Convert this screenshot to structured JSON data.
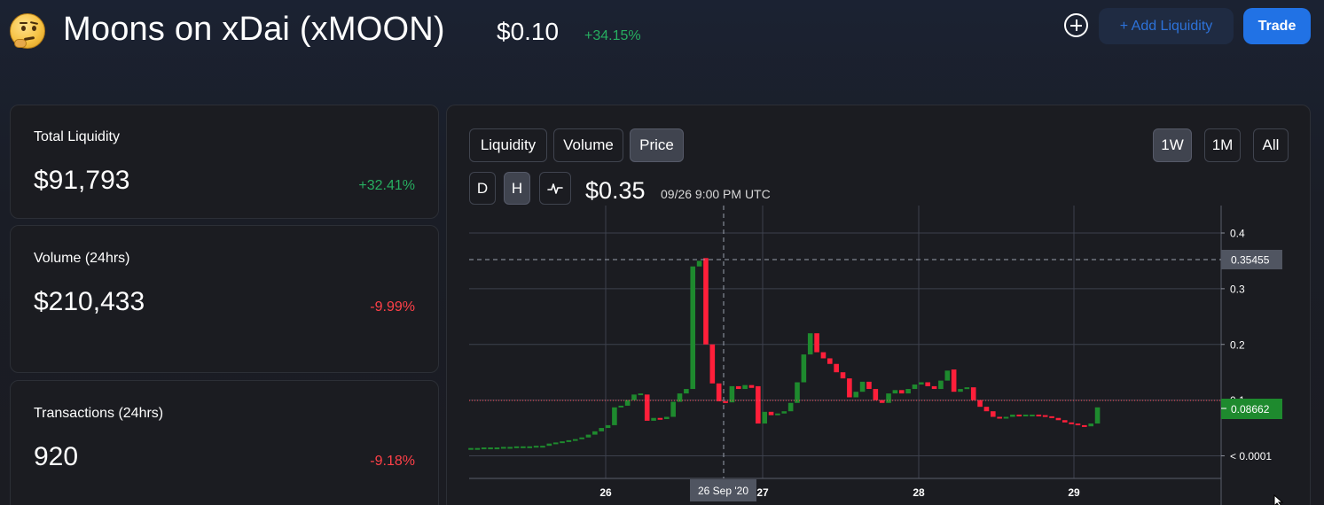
{
  "header": {
    "title": "Moons on xDai (xMOON)",
    "price": "$0.10",
    "change": "+34.15%",
    "add_liquidity_label": "+ Add Liquidity",
    "trade_label": "Trade",
    "avatar_icon": "thinking-face-icon",
    "add_icon": "plus-circle-icon"
  },
  "stats": [
    {
      "label": "Total Liquidity",
      "value": "$91,793",
      "change": "+32.41%",
      "direction": "up"
    },
    {
      "label": "Volume (24hrs)",
      "value": "$210,433",
      "change": "-9.99%",
      "direction": "down"
    },
    {
      "label": "Transactions (24hrs)",
      "value": "920",
      "change": "-9.18%",
      "direction": "down"
    }
  ],
  "chart_controls": {
    "tabs": [
      "Liquidity",
      "Volume",
      "Price"
    ],
    "active_tab": "Price",
    "ranges": [
      "1W",
      "1M",
      "All"
    ],
    "active_range": "1W",
    "intervals": [
      "D",
      "H"
    ],
    "active_interval": "H",
    "line_toggle_icon": "line-chart-icon"
  },
  "chart_readout": {
    "price": "$0.35",
    "time": "09/26 9:00 PM UTC"
  },
  "colors": {
    "up": "#1e8a2e",
    "down": "#ff1f3a",
    "accent": "#2172e5",
    "positive_text": "#27ae60",
    "negative_text": "#ff4048"
  },
  "chart_data": {
    "type": "candlestick",
    "x_tick_labels": [
      "26",
      "27",
      "28",
      "29"
    ],
    "y_tick_labels": [
      "0.4",
      "0.3",
      "0.2",
      "0.1",
      "< 0.0001"
    ],
    "ylim": [
      0,
      0.4
    ],
    "crosshair_x_label": "26 Sep '20",
    "crosshair_y_label": "0.35455",
    "last_price_label": "0.08662",
    "grid": true,
    "candles": [
      {
        "o": 0.013,
        "c": 0.014
      },
      {
        "o": 0.014,
        "c": 0.014
      },
      {
        "o": 0.014,
        "c": 0.015
      },
      {
        "o": 0.015,
        "c": 0.015
      },
      {
        "o": 0.015,
        "c": 0.015
      },
      {
        "o": 0.015,
        "c": 0.016
      },
      {
        "o": 0.016,
        "c": 0.016
      },
      {
        "o": 0.016,
        "c": 0.017
      },
      {
        "o": 0.017,
        "c": 0.017
      },
      {
        "o": 0.017,
        "c": 0.017
      },
      {
        "o": 0.017,
        "c": 0.018
      },
      {
        "o": 0.018,
        "c": 0.018
      },
      {
        "o": 0.018,
        "c": 0.022
      },
      {
        "o": 0.022,
        "c": 0.024
      },
      {
        "o": 0.024,
        "c": 0.026
      },
      {
        "o": 0.026,
        "c": 0.028
      },
      {
        "o": 0.028,
        "c": 0.03
      },
      {
        "o": 0.03,
        "c": 0.033
      },
      {
        "o": 0.033,
        "c": 0.038
      },
      {
        "o": 0.038,
        "c": 0.044
      },
      {
        "o": 0.044,
        "c": 0.05
      },
      {
        "o": 0.05,
        "c": 0.055
      },
      {
        "o": 0.055,
        "c": 0.087
      },
      {
        "o": 0.087,
        "c": 0.09
      },
      {
        "o": 0.09,
        "c": 0.1
      },
      {
        "o": 0.1,
        "c": 0.11
      },
      {
        "o": 0.11,
        "c": 0.112
      },
      {
        "o": 0.11,
        "c": 0.063
      },
      {
        "o": 0.063,
        "c": 0.068
      },
      {
        "o": 0.068,
        "c": 0.066
      },
      {
        "o": 0.066,
        "c": 0.07
      },
      {
        "o": 0.07,
        "c": 0.097
      },
      {
        "o": 0.097,
        "c": 0.112
      },
      {
        "o": 0.112,
        "c": 0.12
      },
      {
        "o": 0.12,
        "c": 0.34
      },
      {
        "o": 0.34,
        "c": 0.35
      },
      {
        "o": 0.355,
        "c": 0.2
      },
      {
        "o": 0.2,
        "c": 0.13
      },
      {
        "o": 0.13,
        "c": 0.098
      },
      {
        "o": 0.098,
        "c": 0.096
      },
      {
        "o": 0.096,
        "c": 0.125
      },
      {
        "o": 0.125,
        "c": 0.12
      },
      {
        "o": 0.12,
        "c": 0.127
      },
      {
        "o": 0.127,
        "c": 0.122
      },
      {
        "o": 0.125,
        "c": 0.058
      },
      {
        "o": 0.058,
        "c": 0.079
      },
      {
        "o": 0.079,
        "c": 0.073
      },
      {
        "o": 0.073,
        "c": 0.076
      },
      {
        "o": 0.076,
        "c": 0.08
      },
      {
        "o": 0.08,
        "c": 0.095
      },
      {
        "o": 0.095,
        "c": 0.132
      },
      {
        "o": 0.132,
        "c": 0.182
      },
      {
        "o": 0.182,
        "c": 0.22
      },
      {
        "o": 0.22,
        "c": 0.186
      },
      {
        "o": 0.186,
        "c": 0.175
      },
      {
        "o": 0.175,
        "c": 0.165
      },
      {
        "o": 0.165,
        "c": 0.15
      },
      {
        "o": 0.15,
        "c": 0.139
      },
      {
        "o": 0.139,
        "c": 0.105
      },
      {
        "o": 0.105,
        "c": 0.115
      },
      {
        "o": 0.115,
        "c": 0.133
      },
      {
        "o": 0.133,
        "c": 0.12
      },
      {
        "o": 0.12,
        "c": 0.1
      },
      {
        "o": 0.1,
        "c": 0.095
      },
      {
        "o": 0.095,
        "c": 0.112
      },
      {
        "o": 0.112,
        "c": 0.118
      },
      {
        "o": 0.118,
        "c": 0.112
      },
      {
        "o": 0.112,
        "c": 0.12
      },
      {
        "o": 0.12,
        "c": 0.128
      },
      {
        "o": 0.128,
        "c": 0.132
      },
      {
        "o": 0.132,
        "c": 0.125
      },
      {
        "o": 0.125,
        "c": 0.12
      },
      {
        "o": 0.12,
        "c": 0.135
      },
      {
        "o": 0.135,
        "c": 0.153
      },
      {
        "o": 0.155,
        "c": 0.115
      },
      {
        "o": 0.115,
        "c": 0.12
      },
      {
        "o": 0.12,
        "c": 0.123
      },
      {
        "o": 0.123,
        "c": 0.1
      },
      {
        "o": 0.1,
        "c": 0.088
      },
      {
        "o": 0.088,
        "c": 0.08
      },
      {
        "o": 0.08,
        "c": 0.07
      },
      {
        "o": 0.07,
        "c": 0.068
      },
      {
        "o": 0.068,
        "c": 0.07
      },
      {
        "o": 0.07,
        "c": 0.074
      },
      {
        "o": 0.074,
        "c": 0.072
      },
      {
        "o": 0.072,
        "c": 0.074
      },
      {
        "o": 0.074,
        "c": 0.074
      },
      {
        "o": 0.074,
        "c": 0.073
      },
      {
        "o": 0.073,
        "c": 0.071
      },
      {
        "o": 0.071,
        "c": 0.068
      },
      {
        "o": 0.068,
        "c": 0.064
      },
      {
        "o": 0.064,
        "c": 0.06
      },
      {
        "o": 0.06,
        "c": 0.058
      },
      {
        "o": 0.058,
        "c": 0.055
      },
      {
        "o": 0.055,
        "c": 0.053
      },
      {
        "o": 0.053,
        "c": 0.058
      },
      {
        "o": 0.058,
        "c": 0.087
      }
    ]
  }
}
